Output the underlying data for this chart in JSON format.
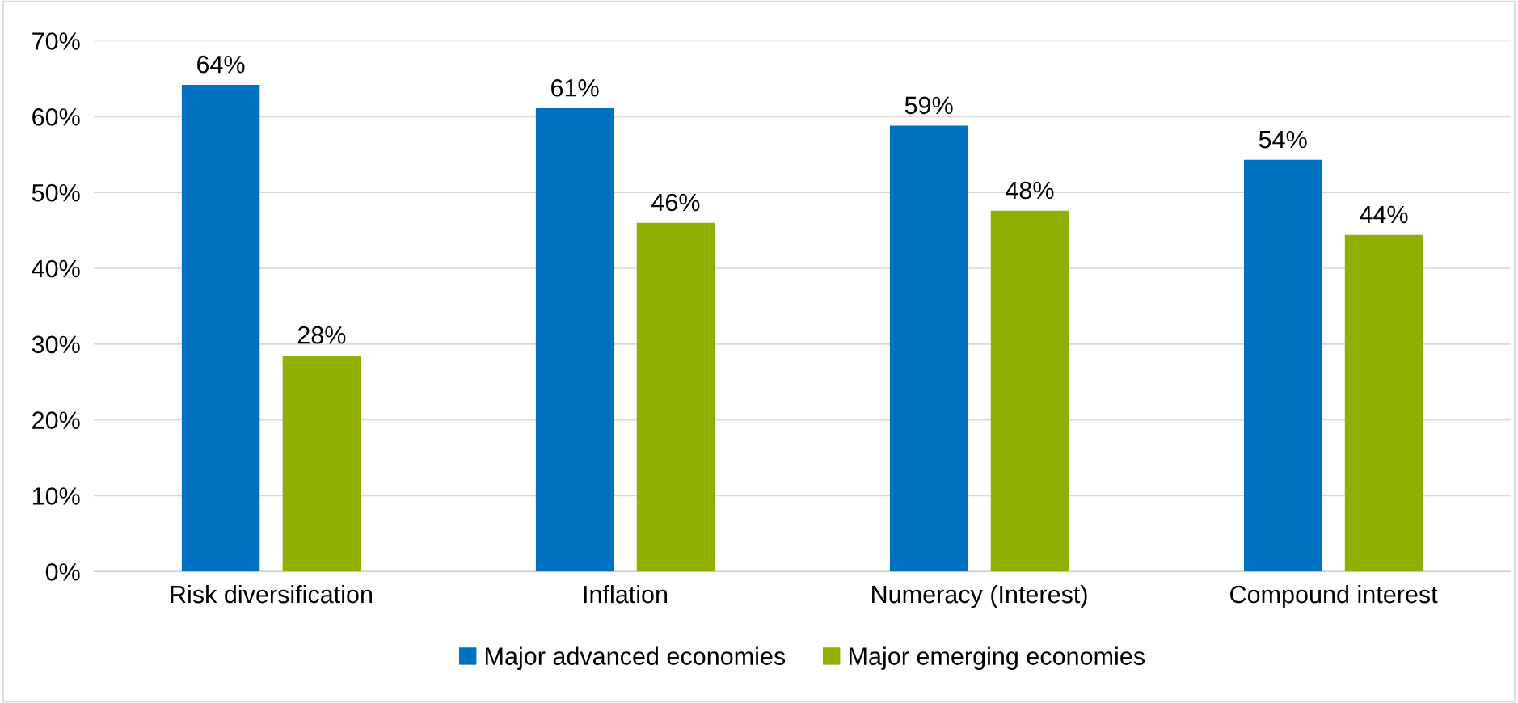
{
  "chart_data": {
    "type": "bar",
    "categories": [
      "Risk diversification",
      "Inflation",
      "Numeracy (Interest)",
      "Compound interest"
    ],
    "series": [
      {
        "name": "Major advanced economies",
        "color": "#0070c0",
        "values": [
          64.2,
          61.1,
          58.8,
          54.3
        ],
        "value_labels": [
          "64%",
          "61%",
          "59%",
          "54%"
        ]
      },
      {
        "name": "Major emerging economies",
        "color": "#8fb000",
        "values": [
          28.5,
          46,
          47.6,
          44.4
        ],
        "value_labels": [
          "28%",
          "46%",
          "48%",
          "44%"
        ]
      }
    ],
    "ylim": [
      0,
      70
    ],
    "yticks": [
      {
        "value": 0,
        "label": "0%"
      },
      {
        "value": 10,
        "label": "10%"
      },
      {
        "value": 20,
        "label": "20%"
      },
      {
        "value": 30,
        "label": "30%"
      },
      {
        "value": 40,
        "label": "40%"
      },
      {
        "value": 50,
        "label": "50%"
      },
      {
        "value": 60,
        "label": "60%"
      },
      {
        "value": 70,
        "label": "70%"
      }
    ],
    "grid": "y",
    "legend": "bottom"
  }
}
